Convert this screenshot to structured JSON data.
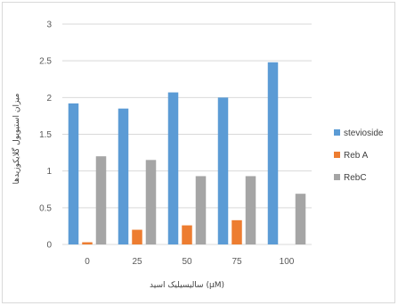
{
  "chart_data": {
    "type": "bar",
    "title": "",
    "xlabel": "سالیسیلیک اسید (μM)",
    "ylabel": "میزان استیویول گلایکوزیدها",
    "categories": [
      "0",
      "25",
      "50",
      "75",
      "100"
    ],
    "series": [
      {
        "name": "stevioside",
        "color": "#5b9bd5",
        "values": [
          1.92,
          1.85,
          2.07,
          2.0,
          2.48
        ]
      },
      {
        "name": "Reb A",
        "color": "#ed7d31",
        "values": [
          0.03,
          0.2,
          0.26,
          0.33,
          0.0
        ]
      },
      {
        "name": "RebC",
        "color": "#a5a5a5",
        "values": [
          1.2,
          1.15,
          0.93,
          0.93,
          0.69
        ]
      }
    ],
    "ylim": [
      0,
      3
    ],
    "yticks": [
      "0",
      "0.5",
      "1",
      "1.5",
      "2",
      "2.5",
      "3"
    ],
    "grid": true,
    "legend_position": "right"
  }
}
